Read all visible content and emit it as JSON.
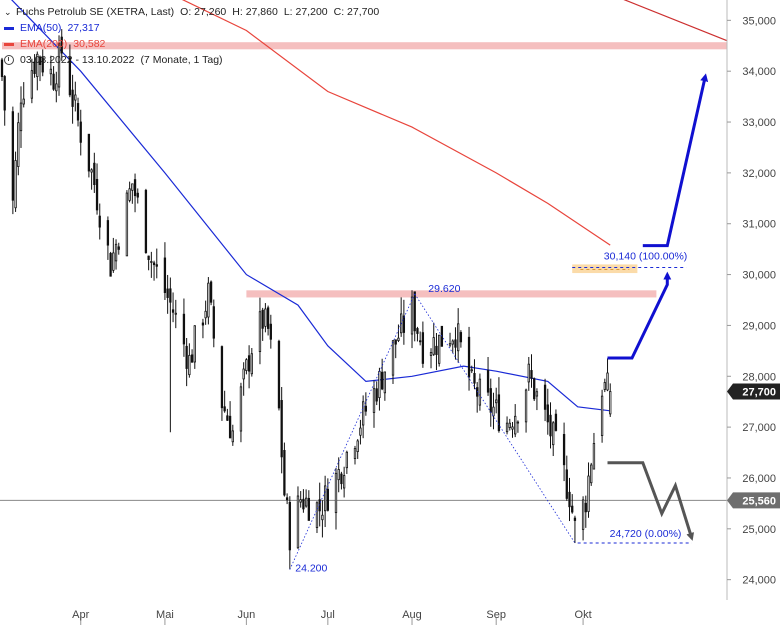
{
  "legend": {
    "title": "Fuchs Petrolub SE (XETRA, Last)",
    "ohlc": {
      "o_label": "O: 27,260",
      "h_label": "H: 27,860",
      "l_label": "L: 27,200",
      "c_label": "C: 27,700"
    },
    "ema50": {
      "label": "EMA(50)",
      "value": "27,317",
      "color": "#1a2ad6"
    },
    "ema200": {
      "label": "EMA(200)",
      "value": "30,582",
      "color": "#e8453c"
    },
    "period": "03.03.2022 - 13.10.2022",
    "period_note": "(7 Monate, 1 Tag)"
  },
  "chart_data": {
    "type": "candlestick",
    "title": "Fuchs Petrolub SE (XETRA, Last)",
    "ylim": [
      23.6,
      35.4
    ],
    "y_ticks": [
      {
        "v": 35,
        "label": "35,000"
      },
      {
        "v": 34,
        "label": "34,000"
      },
      {
        "v": 33,
        "label": "33,000"
      },
      {
        "v": 32,
        "label": "32,000"
      },
      {
        "v": 31,
        "label": "31,000"
      },
      {
        "v": 30,
        "label": "30,000"
      },
      {
        "v": 29,
        "label": "29,000"
      },
      {
        "v": 28,
        "label": "28,000"
      },
      {
        "v": 27,
        "label": "27,000"
      },
      {
        "v": 26,
        "label": "26,000"
      },
      {
        "v": 25,
        "label": "25,000"
      },
      {
        "v": 24,
        "label": "24,000"
      }
    ],
    "x_labels": [
      {
        "date": "2022-04-01",
        "label": "Apr"
      },
      {
        "date": "2022-05-02",
        "label": "Mai"
      },
      {
        "date": "2022-06-01",
        "label": "Jun"
      },
      {
        "date": "2022-07-01",
        "label": "Jul"
      },
      {
        "date": "2022-08-01",
        "label": "Aug"
      },
      {
        "date": "2022-09-01",
        "label": "Sep"
      },
      {
        "date": "2022-10-03",
        "label": "Okt"
      }
    ],
    "x_start": "2022-03-03",
    "x_end_visible": "2022-11-25",
    "series": [
      {
        "name": "Fuchs Petrolub SE (XETRA, Last)",
        "type": "candlestick",
        "anchors": [
          {
            "date": "2022-03-03",
            "close": 33.9
          },
          {
            "date": "2022-03-07",
            "close": 31.4
          },
          {
            "date": "2022-03-10",
            "close": 33.6
          },
          {
            "date": "2022-03-16",
            "close": 34.3
          },
          {
            "date": "2022-03-22",
            "close": 33.9
          },
          {
            "date": "2022-03-25",
            "close": 34.4
          },
          {
            "date": "2022-03-31",
            "close": 33.0
          },
          {
            "date": "2022-04-06",
            "close": 31.8
          },
          {
            "date": "2022-04-12",
            "close": 30.2
          },
          {
            "date": "2022-04-20",
            "close": 31.8
          },
          {
            "date": "2022-04-27",
            "close": 30.3
          },
          {
            "date": "2022-05-05",
            "close": 29.3
          },
          {
            "date": "2022-05-11",
            "close": 28.3
          },
          {
            "date": "2022-05-18",
            "close": 29.6
          },
          {
            "date": "2022-05-23",
            "close": 27.5
          },
          {
            "date": "2022-05-27",
            "close": 26.9
          },
          {
            "date": "2022-06-03",
            "close": 28.6
          },
          {
            "date": "2022-06-07",
            "close": 29.1
          },
          {
            "date": "2022-06-09",
            "close": 28.9
          },
          {
            "date": "2022-06-13",
            "close": 27.3
          },
          {
            "date": "2022-06-15",
            "close": 25.7
          },
          {
            "date": "2022-06-17",
            "close": 24.9
          },
          {
            "date": "2022-06-21",
            "close": 25.6
          },
          {
            "date": "2022-06-28",
            "close": 25.4
          },
          {
            "date": "2022-07-05",
            "close": 26.1
          },
          {
            "date": "2022-07-12",
            "close": 27.0
          },
          {
            "date": "2022-07-20",
            "close": 27.9
          },
          {
            "date": "2022-07-27",
            "close": 28.8
          },
          {
            "date": "2022-08-01",
            "close": 29.3
          },
          {
            "date": "2022-08-05",
            "close": 28.6
          },
          {
            "date": "2022-08-11",
            "close": 28.7
          },
          {
            "date": "2022-08-17",
            "close": 28.9
          },
          {
            "date": "2022-08-23",
            "close": 27.8
          },
          {
            "date": "2022-08-30",
            "close": 27.4
          },
          {
            "date": "2022-09-05",
            "close": 27.1
          },
          {
            "date": "2022-09-09",
            "close": 27.4
          },
          {
            "date": "2022-09-13",
            "close": 28.0
          },
          {
            "date": "2022-09-19",
            "close": 27.2
          },
          {
            "date": "2022-09-23",
            "close": 26.6
          },
          {
            "date": "2022-09-28",
            "close": 25.7
          },
          {
            "date": "2022-09-30",
            "close": 25.0
          },
          {
            "date": "2022-10-04",
            "close": 25.6
          },
          {
            "date": "2022-10-06",
            "close": 26.4
          },
          {
            "date": "2022-10-10",
            "close": 27.8
          },
          {
            "date": "2022-10-13",
            "close": 27.7
          }
        ],
        "last": {
          "date": "2022-10-13",
          "open": 27.26,
          "high": 27.86,
          "low": 27.2,
          "close": 27.7
        }
      },
      {
        "name": "EMA(50)",
        "type": "line",
        "color": "#1a2ad6",
        "points": [
          {
            "date": "2022-03-03",
            "value": 35.6
          },
          {
            "date": "2022-04-01",
            "value": 34.0
          },
          {
            "date": "2022-05-02",
            "value": 32.0
          },
          {
            "date": "2022-06-01",
            "value": 30.0
          },
          {
            "date": "2022-06-20",
            "value": 29.4
          },
          {
            "date": "2022-07-01",
            "value": 28.6
          },
          {
            "date": "2022-07-15",
            "value": 27.9
          },
          {
            "date": "2022-08-01",
            "value": 28.0
          },
          {
            "date": "2022-08-20",
            "value": 28.2
          },
          {
            "date": "2022-09-01",
            "value": 28.1
          },
          {
            "date": "2022-09-20",
            "value": 27.9
          },
          {
            "date": "2022-10-01",
            "value": 27.4
          },
          {
            "date": "2022-10-13",
            "value": 27.32
          }
        ]
      },
      {
        "name": "EMA(200)",
        "type": "line",
        "color": "#e8453c",
        "points": [
          {
            "date": "2022-05-01",
            "value": 35.6
          },
          {
            "date": "2022-06-01",
            "value": 34.8
          },
          {
            "date": "2022-07-01",
            "value": 33.6
          },
          {
            "date": "2022-08-01",
            "value": 32.9
          },
          {
            "date": "2022-09-01",
            "value": 32.0
          },
          {
            "date": "2022-09-20",
            "value": 31.4
          },
          {
            "date": "2022-10-13",
            "value": 30.58
          }
        ]
      },
      {
        "name": "EMA(200) (weekly)",
        "type": "line",
        "color": "#cc2f2f",
        "points": [
          {
            "date": "2022-09-25",
            "value": 35.9
          },
          {
            "date": "2022-11-25",
            "value": 34.6
          }
        ]
      }
    ],
    "levels": [
      {
        "name": "resistance-34.5",
        "type": "band",
        "from_date": "2022-03-03",
        "to_date": "2022-11-25",
        "low": 34.43,
        "high": 34.57,
        "color": "#f4b8b8"
      },
      {
        "name": "resistance-29.6",
        "type": "band",
        "from_date": "2022-06-01",
        "to_date": "2022-10-30",
        "low": 29.55,
        "high": 29.69,
        "color": "#f4b8b8"
      },
      {
        "name": "target-zone",
        "type": "band",
        "from_date": "2022-09-29",
        "to_date": "2022-10-23",
        "low": 30.03,
        "high": 30.2,
        "color": "#fbd7a0"
      },
      {
        "name": "line-25.56",
        "type": "hline",
        "value": 25.56,
        "color": "#888888"
      }
    ],
    "annotations": [
      {
        "text": "29.620",
        "date": "2022-08-02",
        "value": 29.62
      },
      {
        "text": "24.200",
        "date": "2022-06-17",
        "value": 24.2
      },
      {
        "text": "30,140 (100.00%)",
        "date": "2022-10-23",
        "value": 30.14
      },
      {
        "text": "24,720 (0.00%)",
        "date": "2022-10-25",
        "value": 24.72
      }
    ],
    "price_tags": [
      {
        "label": "27,700",
        "value": 27.7,
        "style": "dark"
      },
      {
        "label": "25,560",
        "value": 25.56,
        "style": "gray"
      }
    ],
    "scenarios": [
      {
        "name": "bullish",
        "color": "#1010d0",
        "points": [
          {
            "date": "2022-10-12",
            "value": 28.36
          },
          {
            "date": "2022-10-21",
            "value": 28.36
          },
          {
            "date": "2022-11-03",
            "value": 29.8
          },
          {
            "date": "2022-11-03",
            "value": 30.0
          }
        ],
        "points2": [
          {
            "date": "2022-10-25",
            "value": 30.57
          },
          {
            "date": "2022-11-03",
            "value": 30.57
          },
          {
            "date": "2022-11-17",
            "value": 33.9
          }
        ]
      },
      {
        "name": "bearish",
        "color": "#555555",
        "points": [
          {
            "date": "2022-10-12",
            "value": 26.3
          },
          {
            "date": "2022-10-25",
            "value": 26.3
          },
          {
            "date": "2022-11-01",
            "value": 25.3
          },
          {
            "date": "2022-11-06",
            "value": 25.85
          },
          {
            "date": "2022-11-12",
            "value": 24.82
          }
        ]
      }
    ],
    "fib_lines": [
      {
        "from_date": "2022-06-17",
        "from_value": 24.2,
        "to_date": "2022-08-02",
        "to_value": 29.62
      },
      {
        "from_date": "2022-08-02",
        "from_value": 29.62,
        "to_date": "2022-09-30",
        "to_value": 24.72
      }
    ],
    "grid": false,
    "legend_position": "top-left"
  }
}
